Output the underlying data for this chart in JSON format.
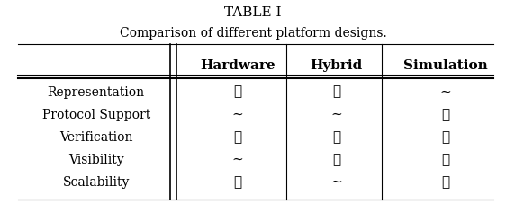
{
  "title": "TABLE I",
  "subtitle": "Comparison of different platform designs.",
  "col_headers": [
    "",
    "Hardware",
    "Hybrid",
    "Simulation"
  ],
  "row_labels": [
    "Representation",
    "Protocol Support",
    "Verification",
    "Visibility",
    "Scalability"
  ],
  "cells": [
    [
      "✓",
      "✓",
      "∼"
    ],
    [
      "∼",
      "∼",
      "✓"
    ],
    [
      "✓",
      "✓",
      "✓"
    ],
    [
      "∼",
      "✓",
      "✓"
    ],
    [
      "✗",
      "∼",
      "✓"
    ]
  ],
  "bold_cells": [
    [
      true,
      true,
      false
    ],
    [
      false,
      false,
      true
    ],
    [
      true,
      true,
      true
    ],
    [
      false,
      true,
      true
    ],
    [
      true,
      false,
      true
    ]
  ],
  "bg_color": "#ffffff",
  "text_color": "#000000",
  "title_fontsize": 11,
  "subtitle_fontsize": 10,
  "header_fontsize": 11,
  "cell_fontsize": 11,
  "row_label_fontsize": 10
}
